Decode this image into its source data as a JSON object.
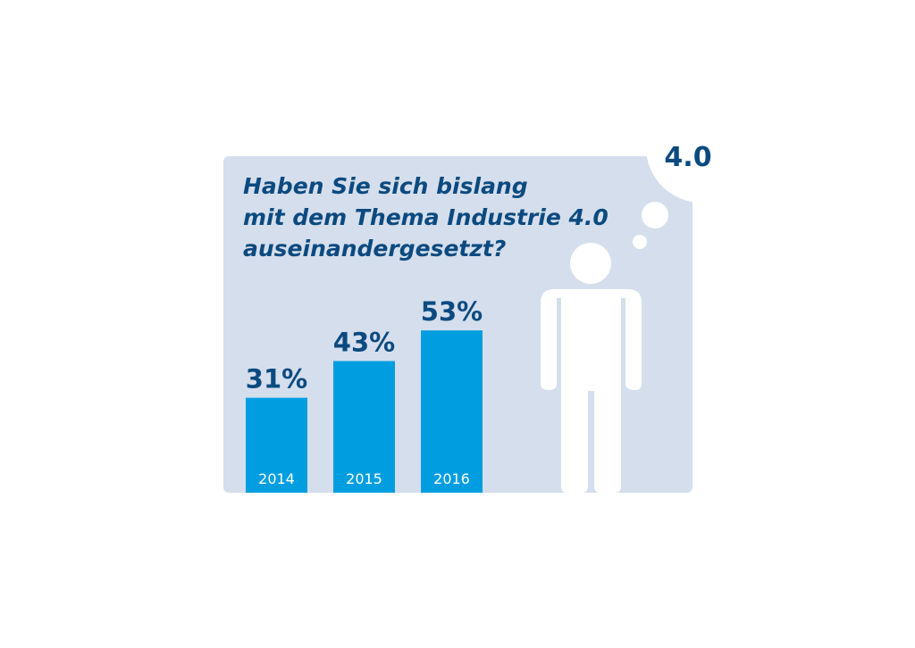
{
  "colors": {
    "panel": "#d5deec",
    "bar": "#009ee0",
    "text": "#0b4a80",
    "figure": "#ffffff"
  },
  "badge": "4.0",
  "chart_data": {
    "type": "bar",
    "title": [
      "Haben Sie sich bislang",
      "mit dem Thema Industrie 4.0",
      "auseinandergesetzt?"
    ],
    "categories": [
      "2014",
      "2015",
      "2016"
    ],
    "values": [
      31,
      43,
      53
    ],
    "value_labels": [
      "31%",
      "43%",
      "53%"
    ],
    "unit": "%",
    "grid": false
  }
}
